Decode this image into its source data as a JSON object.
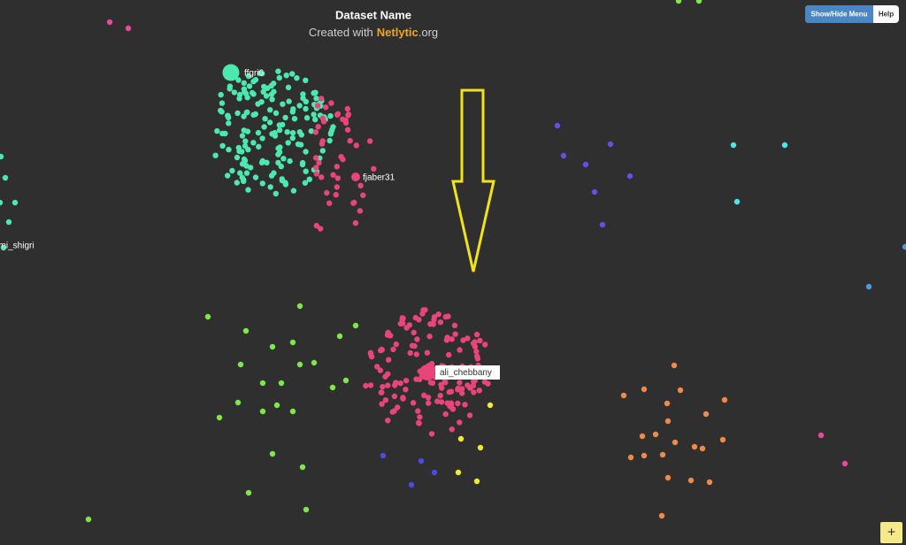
{
  "header": {
    "title": "Dataset Name",
    "credit": {
      "prefix": "Created with",
      "brand": "Netlytic",
      "suffix": ".org"
    }
  },
  "toolbar": {
    "menu_button": "Show/Hide Menu",
    "help_button": "Help"
  },
  "node_labels": [
    "ffgri6",
    "fjaber31",
    "ali_chebbany",
    "rimi_shigri"
  ],
  "zoom_button": "+"
}
